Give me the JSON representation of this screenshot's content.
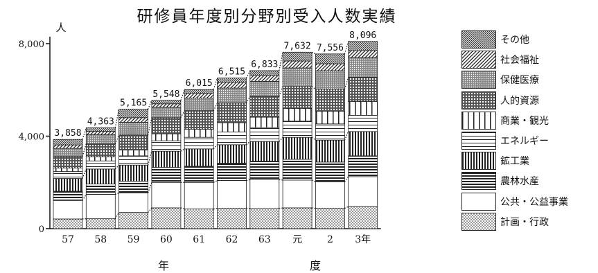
{
  "chart_data": {
    "type": "bar",
    "stacked": true,
    "title": "研修員年度別分野別受入人数実績",
    "ylabel": "人",
    "xlabel": "年　　　　　　　　　　度",
    "xlabel_left": "年",
    "xlabel_right": "度",
    "ylim": [
      0,
      8000
    ],
    "yticks": [
      {
        "value": 0,
        "label": "0"
      },
      {
        "value": 4000,
        "label": "4,000"
      },
      {
        "value": 8000,
        "label": "8,000"
      }
    ],
    "categories": [
      "57",
      "58",
      "59",
      "60",
      "61",
      "62",
      "63",
      "元",
      "2",
      "3年"
    ],
    "totals": [
      3858,
      4363,
      5165,
      5548,
      6015,
      6515,
      6833,
      7632,
      7556,
      8096
    ],
    "total_labels": [
      "3,858",
      "4,363",
      "5,165",
      "5,548",
      "6,015",
      "6,515",
      "6,833",
      "7,632",
      "7,556",
      "8,096"
    ],
    "series": [
      {
        "name": "計画・行政",
        "pattern": "dots",
        "values": [
          420,
          430,
          700,
          900,
          850,
          880,
          870,
          900,
          880,
          950
        ]
      },
      {
        "name": "公共・公益事業",
        "pattern": "blank",
        "values": [
          800,
          1050,
          850,
          1100,
          1150,
          1200,
          1250,
          1200,
          1150,
          1300
        ]
      },
      {
        "name": "農林水産",
        "pattern": "hlines",
        "values": [
          400,
          450,
          500,
          650,
          700,
          750,
          800,
          900,
          850,
          900
        ]
      },
      {
        "name": "鉱工業",
        "pattern": "vlines",
        "values": [
          550,
          650,
          700,
          700,
          750,
          800,
          850,
          950,
          950,
          1050
        ]
      },
      {
        "name": "エネルギー",
        "pattern": "fine-hlines",
        "values": [
          300,
          350,
          400,
          450,
          500,
          550,
          600,
          700,
          700,
          700
        ]
      },
      {
        "name": "商業・観光",
        "pattern": "wide-vlines",
        "values": [
          150,
          180,
          250,
          300,
          350,
          400,
          450,
          550,
          550,
          600
        ]
      },
      {
        "name": "人的資源",
        "pattern": "grid",
        "values": [
          500,
          550,
          650,
          700,
          800,
          850,
          900,
          950,
          950,
          1050
        ]
      },
      {
        "name": "保健医療",
        "pattern": "dense-dots",
        "values": [
          350,
          400,
          550,
          450,
          550,
          650,
          650,
          800,
          800,
          850
        ]
      },
      {
        "name": "社会福祉",
        "pattern": "diag",
        "values": [
          150,
          150,
          200,
          150,
          200,
          250,
          250,
          300,
          300,
          300
        ]
      },
      {
        "name": "その他",
        "pattern": "diag-dense",
        "values": [
          238,
          153,
          365,
          148,
          165,
          185,
          213,
          382,
          426,
          396
        ]
      }
    ],
    "legend_position": "right",
    "grid": false
  }
}
